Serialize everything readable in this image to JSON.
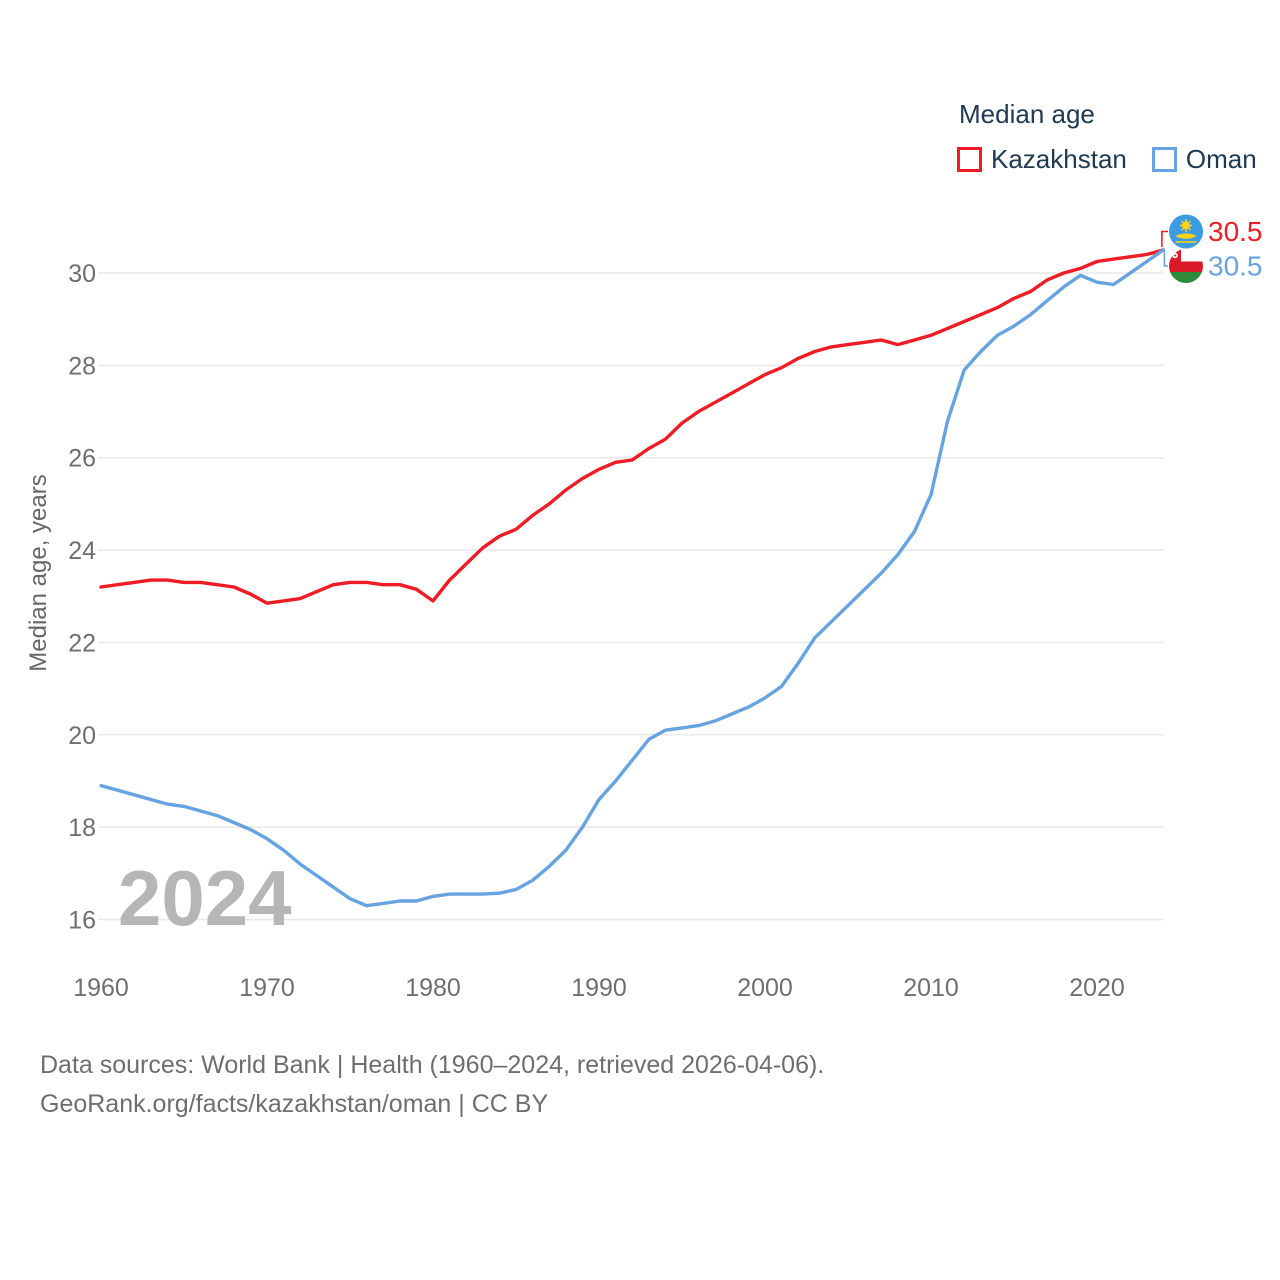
{
  "legend": {
    "title": "Median age",
    "items": [
      {
        "label": "Kazakhstan"
      },
      {
        "label": "Oman"
      }
    ]
  },
  "chart_data": {
    "type": "line",
    "title": "Median age",
    "ylabel": "Median age, years",
    "xlabel": "",
    "watermark": "2024",
    "grid": "horizontal",
    "legend_position": "top-right",
    "xlim": [
      1960,
      2024
    ],
    "ylim": [
      16,
      30.5
    ],
    "x_ticks": [
      1960,
      1970,
      1980,
      1990,
      2000,
      2010,
      2020
    ],
    "y_ticks": [
      16,
      18,
      20,
      22,
      24,
      26,
      28,
      30
    ],
    "x": [
      1960,
      1961,
      1962,
      1963,
      1964,
      1965,
      1966,
      1967,
      1968,
      1969,
      1970,
      1971,
      1972,
      1973,
      1974,
      1975,
      1976,
      1977,
      1978,
      1979,
      1980,
      1981,
      1982,
      1983,
      1984,
      1985,
      1986,
      1987,
      1988,
      1989,
      1990,
      1991,
      1992,
      1993,
      1994,
      1995,
      1996,
      1997,
      1998,
      1999,
      2000,
      2001,
      2002,
      2003,
      2004,
      2005,
      2006,
      2007,
      2008,
      2009,
      2010,
      2011,
      2012,
      2013,
      2014,
      2015,
      2016,
      2017,
      2018,
      2019,
      2020,
      2021,
      2022,
      2023,
      2024
    ],
    "series": [
      {
        "name": "Kazakhstan",
        "color": "#ef1c25",
        "end_label": "30.5",
        "values": [
          23.2,
          23.25,
          23.3,
          23.35,
          23.35,
          23.3,
          23.3,
          23.25,
          23.2,
          23.05,
          22.85,
          22.9,
          22.95,
          23.1,
          23.25,
          23.3,
          23.3,
          23.25,
          23.25,
          23.15,
          22.9,
          23.35,
          23.7,
          24.05,
          24.3,
          24.45,
          24.75,
          25.0,
          25.3,
          25.55,
          25.75,
          25.9,
          25.95,
          26.2,
          26.4,
          26.75,
          27.0,
          27.2,
          27.4,
          27.6,
          27.8,
          27.95,
          28.15,
          28.3,
          28.4,
          28.45,
          28.5,
          28.55,
          28.45,
          28.55,
          28.65,
          28.8,
          28.95,
          29.1,
          29.25,
          29.45,
          29.6,
          29.85,
          30.0,
          30.1,
          30.25,
          30.3,
          30.35,
          30.4,
          30.5
        ]
      },
      {
        "name": "Oman",
        "color": "#66a3e3",
        "end_label": "30.5",
        "values": [
          18.9,
          18.8,
          18.7,
          18.6,
          18.5,
          18.45,
          18.35,
          18.25,
          18.1,
          17.95,
          17.75,
          17.5,
          17.2,
          16.95,
          16.7,
          16.45,
          16.3,
          16.35,
          16.4,
          16.4,
          16.5,
          16.55,
          16.55,
          16.55,
          16.57,
          16.65,
          16.85,
          17.15,
          17.5,
          18.0,
          18.6,
          19.0,
          19.45,
          19.9,
          20.1,
          20.15,
          20.2,
          20.3,
          20.45,
          20.6,
          20.8,
          21.05,
          21.55,
          22.1,
          22.45,
          22.8,
          23.15,
          23.5,
          23.9,
          24.4,
          25.2,
          26.8,
          27.9,
          28.3,
          28.65,
          28.85,
          29.1,
          29.4,
          29.7,
          29.95,
          29.8,
          29.75,
          30.0,
          30.25,
          30.5
        ]
      }
    ]
  },
  "footer": {
    "line1": "Data sources: World Bank | Health (1960–2024, retrieved 2026-04-06).",
    "line2": "GeoRank.org/facts/kazakhstan/oman | CC BY"
  }
}
